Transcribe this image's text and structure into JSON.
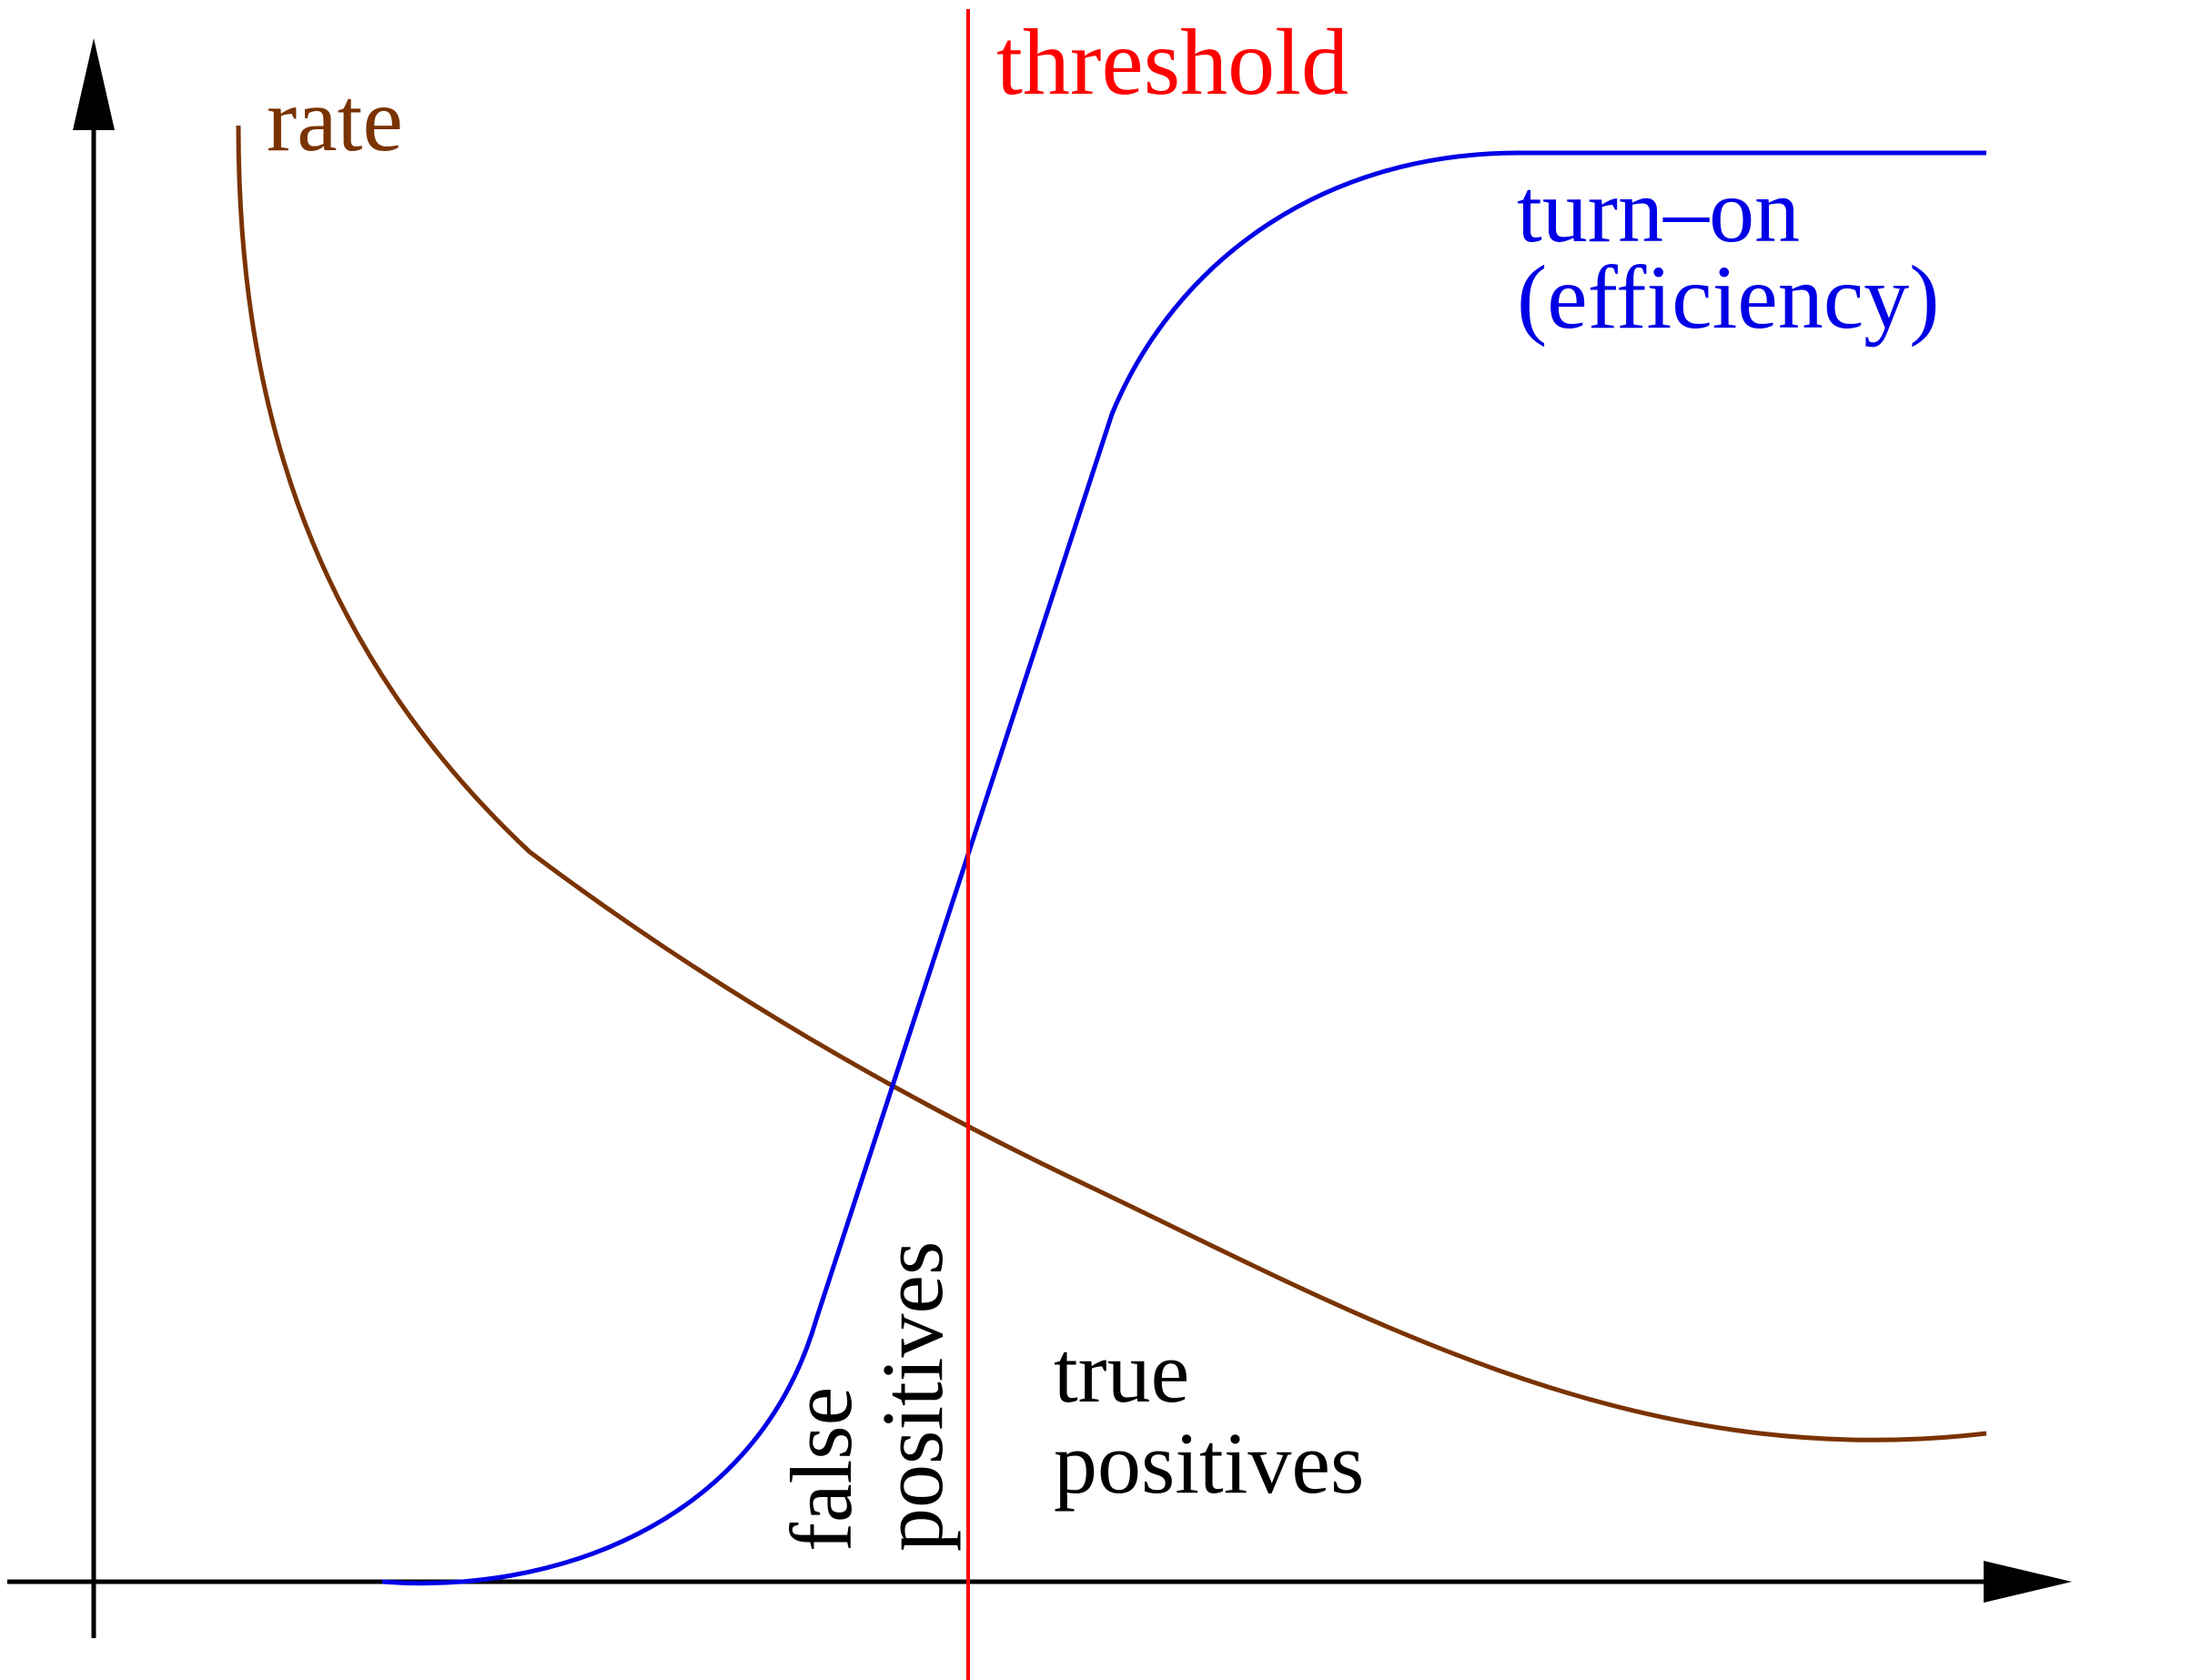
{
  "diagram": {
    "colors": {
      "axes": "#000000",
      "rate": "#7a3300",
      "turn_on": "#0000e6",
      "threshold": "#ff0000",
      "text": "#000000"
    },
    "labels": {
      "rate": "rate",
      "threshold": "threshold",
      "turn_on_line1": "turn–on",
      "turn_on_line2": "(efficiency)",
      "false_positives_line1": "false",
      "false_positives_line2": "positives",
      "true_positives_line1": "true",
      "true_positives_line2": "positives"
    }
  }
}
